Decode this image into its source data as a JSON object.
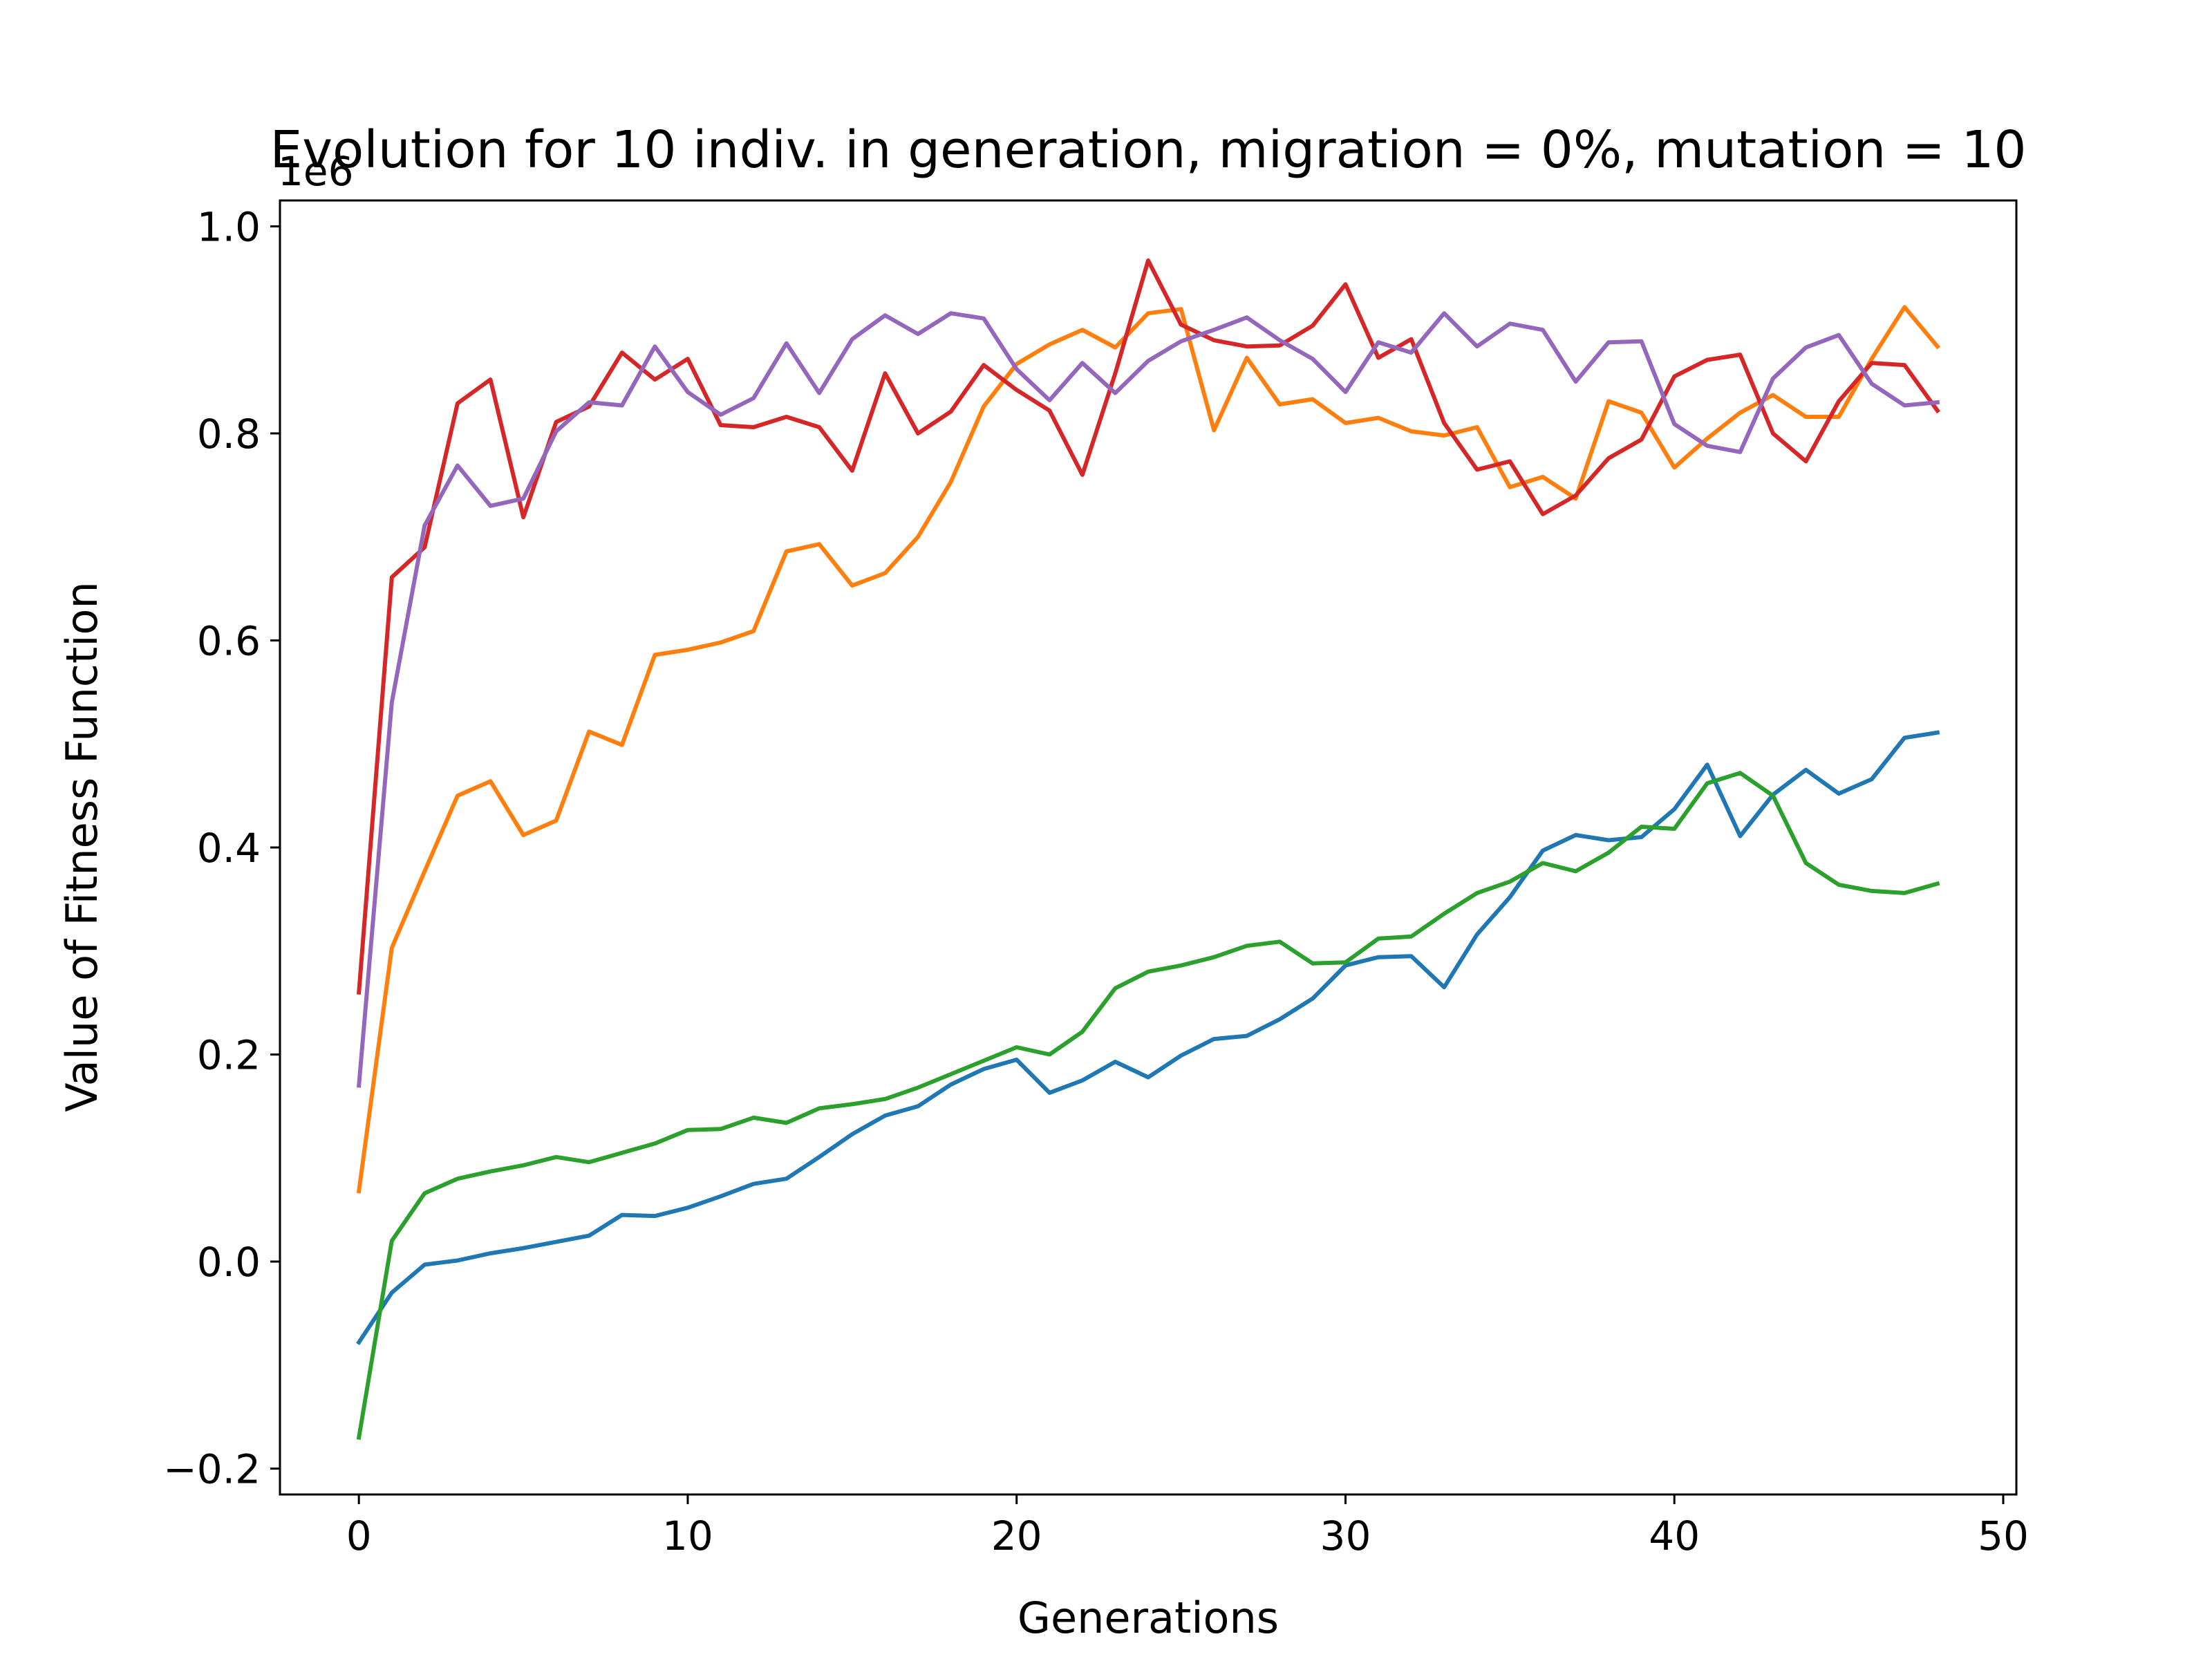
{
  "chart_data": {
    "type": "line",
    "title": "Evolution for 10 indiv. in generation, migration = 0%, mutation = 10",
    "xlabel": "Generations",
    "ylabel": "Value of Fitness Function",
    "y_offset_label": "1e6",
    "xlim": [
      -2.4,
      50.4
    ],
    "ylim": [
      -0.225,
      1.025
    ],
    "x_ticks": [
      0,
      10,
      20,
      30,
      40,
      50
    ],
    "x_tick_labels": [
      "0",
      "10",
      "20",
      "30",
      "40",
      "50"
    ],
    "y_ticks": [
      -0.2,
      0.0,
      0.2,
      0.4,
      0.6,
      0.8,
      1.0
    ],
    "y_tick_labels": [
      "−0.2",
      "0.0",
      "0.2",
      "0.4",
      "0.6",
      "0.8",
      "1.0"
    ],
    "grid": false,
    "legend": false,
    "x": [
      0,
      1,
      2,
      3,
      4,
      5,
      6,
      7,
      8,
      9,
      10,
      11,
      12,
      13,
      14,
      15,
      16,
      17,
      18,
      19,
      20,
      21,
      22,
      23,
      24,
      25,
      26,
      27,
      28,
      29,
      30,
      31,
      32,
      33,
      34,
      35,
      36,
      37,
      38,
      39,
      40,
      41,
      42,
      43,
      44,
      45,
      46,
      47,
      48
    ],
    "series": [
      {
        "color": "#1f77b4",
        "values": [
          -0.078,
          -0.03,
          -0.003,
          0.001,
          0.008,
          0.013,
          0.019,
          0.025,
          0.045,
          0.044,
          0.052,
          0.063,
          0.075,
          0.08,
          0.101,
          0.123,
          0.141,
          0.15,
          0.171,
          0.186,
          0.195,
          0.163,
          0.175,
          0.193,
          0.178,
          0.199,
          0.215,
          0.218,
          0.234,
          0.254,
          0.286,
          0.294,
          0.295,
          0.265,
          0.316,
          0.352,
          0.397,
          0.412,
          0.407,
          0.41,
          0.437,
          0.48,
          0.411,
          0.451,
          0.475,
          0.452,
          0.466,
          0.506,
          0.511
        ]
      },
      {
        "color": "#ff7f0e",
        "values": [
          0.068,
          0.303,
          0.377,
          0.45,
          0.464,
          0.412,
          0.426,
          0.512,
          0.499,
          0.586,
          0.591,
          0.598,
          0.609,
          0.686,
          0.693,
          0.653,
          0.665,
          0.7,
          0.753,
          0.826,
          0.867,
          0.886,
          0.9,
          0.883,
          0.916,
          0.92,
          0.803,
          0.873,
          0.828,
          0.833,
          0.81,
          0.815,
          0.802,
          0.798,
          0.806,
          0.748,
          0.758,
          0.737,
          0.831,
          0.82,
          0.767,
          0.795,
          0.82,
          0.837,
          0.816,
          0.816,
          0.872,
          0.922,
          0.884
        ]
      },
      {
        "color": "#2ca02c",
        "values": [
          -0.17,
          0.02,
          0.066,
          0.08,
          0.087,
          0.093,
          0.101,
          0.096,
          0.105,
          0.114,
          0.127,
          0.128,
          0.139,
          0.134,
          0.148,
          0.152,
          0.157,
          0.168,
          0.181,
          0.194,
          0.207,
          0.2,
          0.222,
          0.264,
          0.28,
          0.286,
          0.294,
          0.305,
          0.309,
          0.288,
          0.289,
          0.312,
          0.314,
          0.336,
          0.356,
          0.367,
          0.385,
          0.377,
          0.395,
          0.42,
          0.418,
          0.462,
          0.472,
          0.45,
          0.385,
          0.364,
          0.358,
          0.356,
          0.365
        ]
      },
      {
        "color": "#d62728",
        "values": [
          0.26,
          0.661,
          0.69,
          0.829,
          0.852,
          0.719,
          0.811,
          0.826,
          0.878,
          0.852,
          0.872,
          0.808,
          0.806,
          0.816,
          0.806,
          0.764,
          0.858,
          0.8,
          0.821,
          0.866,
          0.842,
          0.822,
          0.76,
          0.858,
          0.967,
          0.905,
          0.89,
          0.884,
          0.885,
          0.904,
          0.944,
          0.873,
          0.891,
          0.81,
          0.765,
          0.773,
          0.722,
          0.74,
          0.776,
          0.794,
          0.855,
          0.871,
          0.876,
          0.8,
          0.773,
          0.831,
          0.868,
          0.866,
          0.822
        ]
      },
      {
        "color": "#9467bd",
        "values": [
          0.17,
          0.54,
          0.711,
          0.769,
          0.73,
          0.737,
          0.802,
          0.83,
          0.827,
          0.884,
          0.84,
          0.818,
          0.834,
          0.887,
          0.839,
          0.891,
          0.914,
          0.896,
          0.916,
          0.911,
          0.862,
          0.832,
          0.868,
          0.839,
          0.87,
          0.889,
          0.9,
          0.912,
          0.89,
          0.872,
          0.84,
          0.888,
          0.878,
          0.916,
          0.884,
          0.906,
          0.9,
          0.85,
          0.888,
          0.889,
          0.809,
          0.788,
          0.782,
          0.853,
          0.883,
          0.895,
          0.848,
          0.827,
          0.83
        ]
      }
    ]
  }
}
